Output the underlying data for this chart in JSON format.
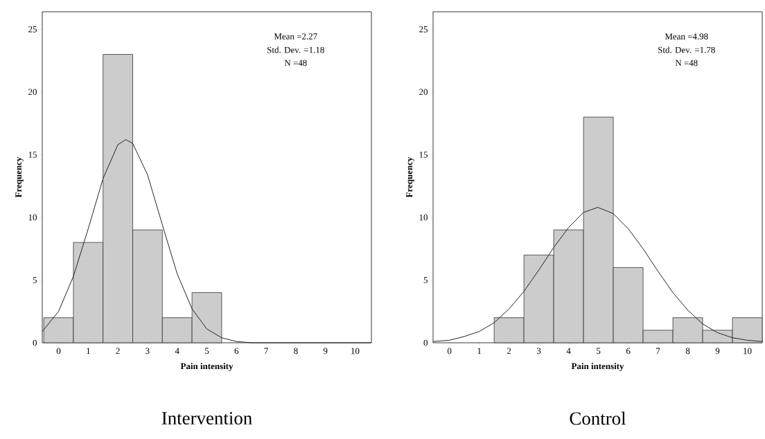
{
  "chart_data": [
    {
      "type": "histogram",
      "title": "Intervention",
      "xlabel": "Pain intensity",
      "ylabel": "Frequency",
      "annotations": [
        "Mean =2.27",
        "Std. Dev. =1.18",
        "N =48"
      ],
      "xlim": [
        -0.55,
        10.55
      ],
      "ylim": [
        0,
        26.4
      ],
      "xticks": [
        0,
        1,
        2,
        3,
        4,
        5,
        6,
        7,
        8,
        9,
        10
      ],
      "yticks": [
        0,
        5,
        10,
        15,
        20,
        25
      ],
      "series": [
        {
          "color": "#cccccc",
          "bins": [
            -0.5,
            0.5,
            1.5,
            2.5,
            3.5,
            4.5,
            5.5
          ],
          "values": [
            2,
            8,
            23,
            9,
            2,
            4
          ]
        },
        {
          "type": "line",
          "color": "#222222",
          "x": [
            -0.55,
            0,
            0.5,
            1,
            1.5,
            2,
            2.27,
            2.5,
            3,
            3.5,
            4,
            4.5,
            5,
            5.5,
            6,
            6.5,
            7,
            8,
            9,
            10,
            10.55
          ],
          "values": [
            0.9,
            2.5,
            5.3,
            9.1,
            13.1,
            15.8,
            16.2,
            15.9,
            13.4,
            9.4,
            5.5,
            2.7,
            1.1,
            0.4,
            0.1,
            0,
            0,
            0,
            0,
            0,
            0
          ]
        }
      ]
    },
    {
      "type": "histogram",
      "title": "Control",
      "xlabel": "Pain intensity",
      "ylabel": "Frequency",
      "annotations": [
        "Mean =4.98",
        "Std. Dev. =1.78",
        "N =48"
      ],
      "xlim": [
        -0.55,
        10.5
      ],
      "ylim": [
        0,
        26.4
      ],
      "xticks": [
        0,
        1,
        2,
        3,
        4,
        5,
        6,
        7,
        8,
        9,
        10
      ],
      "yticks": [
        0,
        5,
        10,
        15,
        20,
        25
      ],
      "series": [
        {
          "color": "#cccccc",
          "bins": [
            1.5,
            2.5,
            3.5,
            4.5,
            5.5,
            6.5,
            7.5,
            8.5,
            9.5,
            10.5
          ],
          "values": [
            2,
            7,
            9,
            18,
            6,
            1,
            2,
            1,
            2
          ]
        },
        {
          "type": "line",
          "color": "#222222",
          "x": [
            -0.55,
            0,
            0.5,
            1,
            1.5,
            2,
            2.5,
            3,
            3.5,
            4,
            4.5,
            4.98,
            5.5,
            6,
            6.5,
            7,
            7.5,
            8,
            8.5,
            9,
            9.5,
            10,
            10.5
          ],
          "values": [
            0.1,
            0.2,
            0.5,
            0.9,
            1.6,
            2.7,
            4.1,
            5.8,
            7.6,
            9.2,
            10.4,
            10.8,
            10.3,
            9.1,
            7.5,
            5.7,
            4.0,
            2.6,
            1.5,
            0.8,
            0.4,
            0.2,
            0.1
          ]
        }
      ]
    }
  ]
}
